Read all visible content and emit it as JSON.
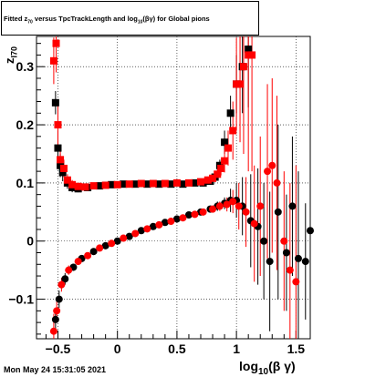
{
  "title": "Fitted  z_{70} versus TpcTrackLength and log_{10}(βγ) for Global pions",
  "title_parts": {
    "pre": "Fitted  z",
    "sub1": "70",
    "mid": " versus TpcTrackLength and log",
    "sub2": "10",
    "post": "(βγ) for Global pions"
  },
  "footer_timestamp": "Mon May 24 15:31:05 2021",
  "xaxis": {
    "label_main": "log",
    "label_sub": "10",
    "label_tail": "(β γ)"
  },
  "yaxis": {
    "label_main": "z",
    "label_sub": "I70"
  },
  "colors": {
    "series_black": "#000000",
    "series_red": "#ff0000",
    "grid": "#000000"
  },
  "chart_data": {
    "type": "scatter",
    "title": "Fitted  z_{70} versus TpcTrackLength and log_{10}(βγ) for Global pions",
    "xlabel": "log_{10}(β γ)",
    "ylabel": "z_{I70}",
    "xlim": [
      -0.68,
      1.62
    ],
    "ylim": [
      -0.168,
      0.352
    ],
    "xticks": [
      -0.5,
      0,
      0.5,
      1,
      1.5
    ],
    "xtick_labels": [
      "−0.5",
      "0",
      "0.5",
      "1",
      "1.5"
    ],
    "yticks": [
      -0.1,
      0,
      0.1,
      0.2,
      0.3
    ],
    "ytick_labels": [
      "−0.1",
      "0",
      "0.1",
      "0.2",
      "0.3"
    ],
    "grid": true,
    "series": [
      {
        "marker": "square",
        "color": "#000000",
        "points": [
          [
            -0.52,
            0.238,
            0.02
          ],
          [
            -0.5,
            0.16,
            0.03
          ],
          [
            -0.48,
            0.13,
            0.02
          ],
          [
            -0.46,
            0.118,
            0.015
          ],
          [
            -0.42,
            0.1,
            0.01
          ],
          [
            -0.38,
            0.092,
            0.008
          ],
          [
            -0.33,
            0.09,
            0.006
          ],
          [
            -0.25,
            0.092,
            0.004
          ],
          [
            -0.15,
            0.095,
            0.003
          ],
          [
            -0.05,
            0.097,
            0.003
          ],
          [
            0.05,
            0.098,
            0.003
          ],
          [
            0.15,
            0.098,
            0.003
          ],
          [
            0.25,
            0.098,
            0.003
          ],
          [
            0.35,
            0.098,
            0.003
          ],
          [
            0.45,
            0.098,
            0.003
          ],
          [
            0.55,
            0.098,
            0.003
          ],
          [
            0.65,
            0.1,
            0.004
          ],
          [
            0.72,
            0.1,
            0.005
          ],
          [
            0.78,
            0.103,
            0.006
          ],
          [
            0.82,
            0.11,
            0.008
          ],
          [
            0.86,
            0.13,
            0.01
          ],
          [
            0.9,
            0.17,
            0.02
          ],
          [
            0.95,
            0.22,
            0.03
          ],
          [
            1.0,
            0.27,
            0.05
          ],
          [
            1.05,
            0.3,
            0.08
          ],
          [
            1.1,
            0.33,
            0.1
          ]
        ]
      },
      {
        "marker": "square",
        "color": "#ff0000",
        "points": [
          [
            -0.535,
            0.31,
            0.04
          ],
          [
            -0.515,
            0.34,
            0.05
          ],
          [
            -0.5,
            0.2,
            0.04
          ],
          [
            -0.48,
            0.14,
            0.02
          ],
          [
            -0.45,
            0.125,
            0.015
          ],
          [
            -0.42,
            0.105,
            0.01
          ],
          [
            -0.38,
            0.097,
            0.008
          ],
          [
            -0.33,
            0.094,
            0.006
          ],
          [
            -0.27,
            0.093,
            0.005
          ],
          [
            -0.2,
            0.095,
            0.004
          ],
          [
            -0.1,
            0.096,
            0.003
          ],
          [
            0.0,
            0.097,
            0.003
          ],
          [
            0.1,
            0.098,
            0.003
          ],
          [
            0.2,
            0.099,
            0.003
          ],
          [
            0.3,
            0.099,
            0.003
          ],
          [
            0.4,
            0.099,
            0.003
          ],
          [
            0.5,
            0.1,
            0.003
          ],
          [
            0.6,
            0.1,
            0.004
          ],
          [
            0.7,
            0.102,
            0.005
          ],
          [
            0.76,
            0.105,
            0.006
          ],
          [
            0.8,
            0.108,
            0.008
          ],
          [
            0.84,
            0.115,
            0.01
          ],
          [
            0.87,
            0.125,
            0.012
          ],
          [
            0.9,
            0.138,
            0.02
          ],
          [
            0.93,
            0.16,
            0.03
          ],
          [
            0.97,
            0.19,
            0.05
          ],
          [
            1.0,
            0.27,
            0.08
          ],
          [
            1.03,
            0.27,
            0.1
          ],
          [
            1.06,
            0.3,
            0.15
          ],
          [
            1.1,
            0.32,
            0.2
          ],
          [
            1.13,
            0.32,
            0.2
          ]
        ]
      },
      {
        "marker": "circle",
        "color": "#000000",
        "points": [
          [
            -0.52,
            -0.135,
            0.02
          ],
          [
            -0.49,
            -0.1,
            0.015
          ],
          [
            -0.44,
            -0.065,
            0.01
          ],
          [
            -0.37,
            -0.045,
            0.006
          ],
          [
            -0.3,
            -0.03,
            0.005
          ],
          [
            -0.2,
            -0.018,
            0.004
          ],
          [
            -0.1,
            -0.008,
            0.003
          ],
          [
            0.0,
            0.0,
            0.003
          ],
          [
            0.1,
            0.008,
            0.003
          ],
          [
            0.2,
            0.018,
            0.003
          ],
          [
            0.3,
            0.025,
            0.003
          ],
          [
            0.4,
            0.032,
            0.003
          ],
          [
            0.5,
            0.038,
            0.003
          ],
          [
            0.6,
            0.045,
            0.004
          ],
          [
            0.7,
            0.05,
            0.005
          ],
          [
            0.78,
            0.055,
            0.006
          ],
          [
            0.84,
            0.06,
            0.008
          ],
          [
            0.9,
            0.065,
            0.01
          ],
          [
            0.95,
            0.07,
            0.02
          ],
          [
            1.0,
            0.07,
            0.03
          ],
          [
            1.05,
            0.06,
            0.05
          ],
          [
            1.12,
            0.035,
            0.08
          ],
          [
            1.18,
            0.025,
            0.1
          ],
          [
            1.23,
            0.0,
            0.1
          ],
          [
            1.28,
            -0.035,
            0.12
          ],
          [
            1.35,
            0.05,
            0.15
          ],
          [
            1.42,
            -0.02,
            0.1
          ],
          [
            1.47,
            0.06,
            0.12
          ],
          [
            1.52,
            -0.03,
            0.15
          ],
          [
            1.58,
            -0.035,
            0.1
          ],
          [
            1.62,
            0.018,
            0.08
          ]
        ]
      },
      {
        "marker": "circle",
        "color": "#ff0000",
        "points": [
          [
            -0.535,
            -0.155,
            0.03
          ],
          [
            -0.51,
            -0.12,
            0.02
          ],
          [
            -0.47,
            -0.075,
            0.012
          ],
          [
            -0.41,
            -0.05,
            0.008
          ],
          [
            -0.33,
            -0.035,
            0.006
          ],
          [
            -0.25,
            -0.025,
            0.005
          ],
          [
            -0.15,
            -0.012,
            0.004
          ],
          [
            -0.05,
            -0.004,
            0.003
          ],
          [
            0.05,
            0.005,
            0.003
          ],
          [
            0.15,
            0.013,
            0.003
          ],
          [
            0.25,
            0.021,
            0.003
          ],
          [
            0.35,
            0.028,
            0.003
          ],
          [
            0.45,
            0.034,
            0.003
          ],
          [
            0.55,
            0.04,
            0.004
          ],
          [
            0.65,
            0.046,
            0.004
          ],
          [
            0.72,
            0.05,
            0.005
          ],
          [
            0.8,
            0.055,
            0.006
          ],
          [
            0.86,
            0.06,
            0.008
          ],
          [
            0.92,
            0.063,
            0.012
          ],
          [
            0.97,
            0.068,
            0.02
          ],
          [
            1.02,
            0.06,
            0.04
          ],
          [
            1.08,
            0.05,
            0.06
          ],
          [
            1.15,
            0.03,
            0.1
          ],
          [
            1.2,
            0.06,
            0.12
          ],
          [
            1.26,
            0.12,
            0.15
          ],
          [
            1.3,
            0.13,
            0.15
          ],
          [
            1.34,
            0.1,
            0.15
          ],
          [
            1.4,
            0.0,
            0.12
          ],
          [
            1.45,
            -0.05,
            0.15
          ],
          [
            1.5,
            -0.07,
            0.2
          ]
        ]
      }
    ]
  }
}
